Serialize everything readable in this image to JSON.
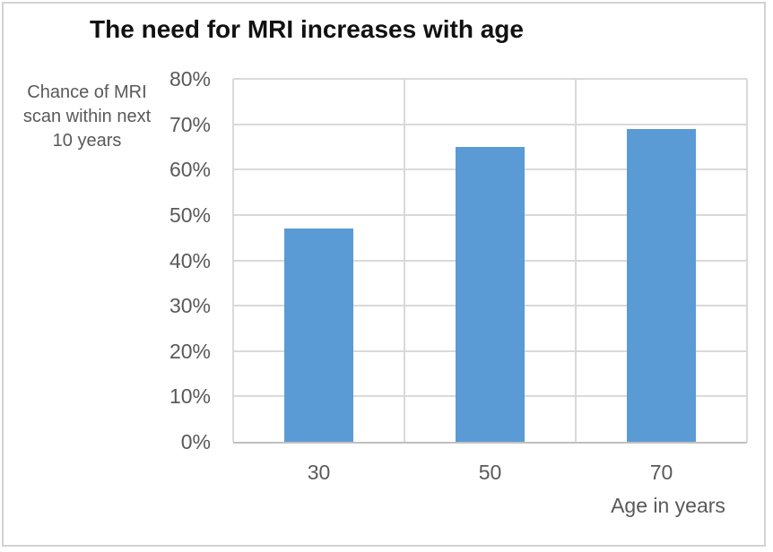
{
  "chart_data": {
    "type": "bar",
    "title": "The need for MRI increases with age",
    "ylabel_lines": [
      "Chance of MRI",
      "scan within next",
      "10 years"
    ],
    "xlabel": "Age in years",
    "categories": [
      "30",
      "50",
      "70"
    ],
    "values": [
      47,
      65,
      69
    ],
    "value_unit": "%",
    "ylim": [
      0,
      80
    ],
    "ytick_step": 10,
    "ytick_labels": [
      "0%",
      "10%",
      "20%",
      "30%",
      "40%",
      "50%",
      "60%",
      "70%",
      "80%"
    ],
    "grid": "horizontal lines each 10%, vertical category separators, no top/right frame",
    "legend": "none",
    "colors": {
      "bar": "#5b9bd5",
      "gridline": "#d9d9d9",
      "axis_line": "#bfbfbf",
      "tick_text": "#595959",
      "title_text": "#111111",
      "frame_border": "#d2d2d2",
      "background": "#ffffff"
    }
  }
}
